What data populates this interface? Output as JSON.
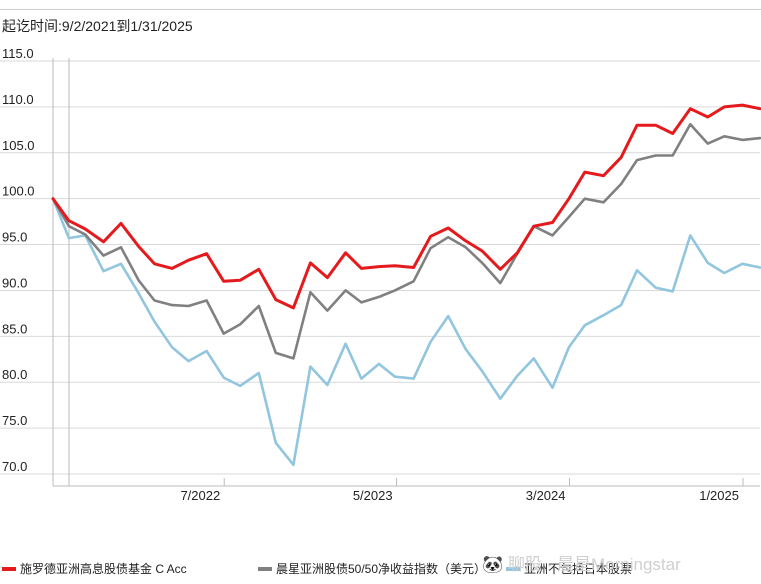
{
  "chart_data": {
    "type": "line",
    "title": "起讫时间:9/2/2021到1/31/2025",
    "xlabel": "",
    "ylabel": "",
    "ylim": [
      70,
      115
    ],
    "yticks": [
      "115.0",
      "110.0",
      "105.0",
      "100.0",
      "95.0",
      "90.0",
      "85.0",
      "80.0",
      "75.0",
      "70.0"
    ],
    "xticks": [
      "7/2022",
      "5/2023",
      "3/2024",
      "1/2025"
    ],
    "grid": "horizontal",
    "legend_position": "bottom",
    "x": [
      "2021-09-02",
      "2021-09-30",
      "2021-10-29",
      "2021-11-30",
      "2021-12-31",
      "2022-01-31",
      "2022-02-28",
      "2022-03-31",
      "2022-04-29",
      "2022-05-31",
      "2022-06-30",
      "2022-07-29",
      "2022-08-31",
      "2022-09-30",
      "2022-10-31",
      "2022-11-30",
      "2022-12-30",
      "2023-01-31",
      "2023-02-28",
      "2023-03-31",
      "2023-04-28",
      "2023-05-31",
      "2023-06-30",
      "2023-07-31",
      "2023-08-31",
      "2023-09-29",
      "2023-10-31",
      "2023-11-30",
      "2023-12-29",
      "2024-01-31",
      "2024-02-29",
      "2024-03-28",
      "2024-04-30",
      "2024-05-31",
      "2024-06-28",
      "2024-07-31",
      "2024-08-30",
      "2024-09-30",
      "2024-10-31",
      "2024-11-29",
      "2024-12-31",
      "2025-01-31"
    ],
    "series": [
      {
        "name": "施罗德亚洲高息股债基金 C Acc",
        "color": "#e41a1c",
        "values": [
          100.0,
          97.6,
          96.7,
          95.3,
          97.3,
          94.8,
          92.9,
          92.4,
          93.3,
          94.0,
          91.0,
          91.1,
          92.3,
          89.0,
          88.1,
          93.0,
          91.4,
          94.1,
          92.4,
          92.6,
          92.7,
          92.5,
          95.9,
          96.8,
          95.4,
          94.3,
          92.3,
          94.1,
          97.0,
          97.4,
          100.0,
          102.9,
          102.5,
          104.5,
          108.0,
          108.0,
          107.1,
          109.8,
          108.9,
          110.0,
          110.2,
          109.8
        ]
      },
      {
        "name": "晨星亚洲股债50/50净收益指数（美元）",
        "color": "#808080",
        "values": [
          100.0,
          97.0,
          96.1,
          93.8,
          94.7,
          91.1,
          88.9,
          88.4,
          88.3,
          88.9,
          85.3,
          86.3,
          88.3,
          83.2,
          82.6,
          89.8,
          87.8,
          90.0,
          88.7,
          89.3,
          90.0,
          91.0,
          94.6,
          95.8,
          94.7,
          93.0,
          90.8,
          94.0,
          97.0,
          96.0,
          98.0,
          100.0,
          99.6,
          101.6,
          104.2,
          104.7,
          104.7,
          108.1,
          106.0,
          106.8,
          106.4,
          106.6
        ]
      },
      {
        "name": "亚洲不包括日本股票",
        "color": "#92c5de",
        "values": [
          100.0,
          95.7,
          96.0,
          92.1,
          92.9,
          89.7,
          86.6,
          83.8,
          82.3,
          83.4,
          80.5,
          79.6,
          81.0,
          73.4,
          71.0,
          81.7,
          79.7,
          84.2,
          80.4,
          82.0,
          80.6,
          80.4,
          84.4,
          87.2,
          83.6,
          81.2,
          78.2,
          80.7,
          82.6,
          79.4,
          83.8,
          86.2,
          87.3,
          88.4,
          92.2,
          90.3,
          89.9,
          96.0,
          93.0,
          91.9,
          92.9,
          92.5
        ]
      }
    ]
  },
  "watermark": "🐼 聊股 · 晨星Morningstar"
}
